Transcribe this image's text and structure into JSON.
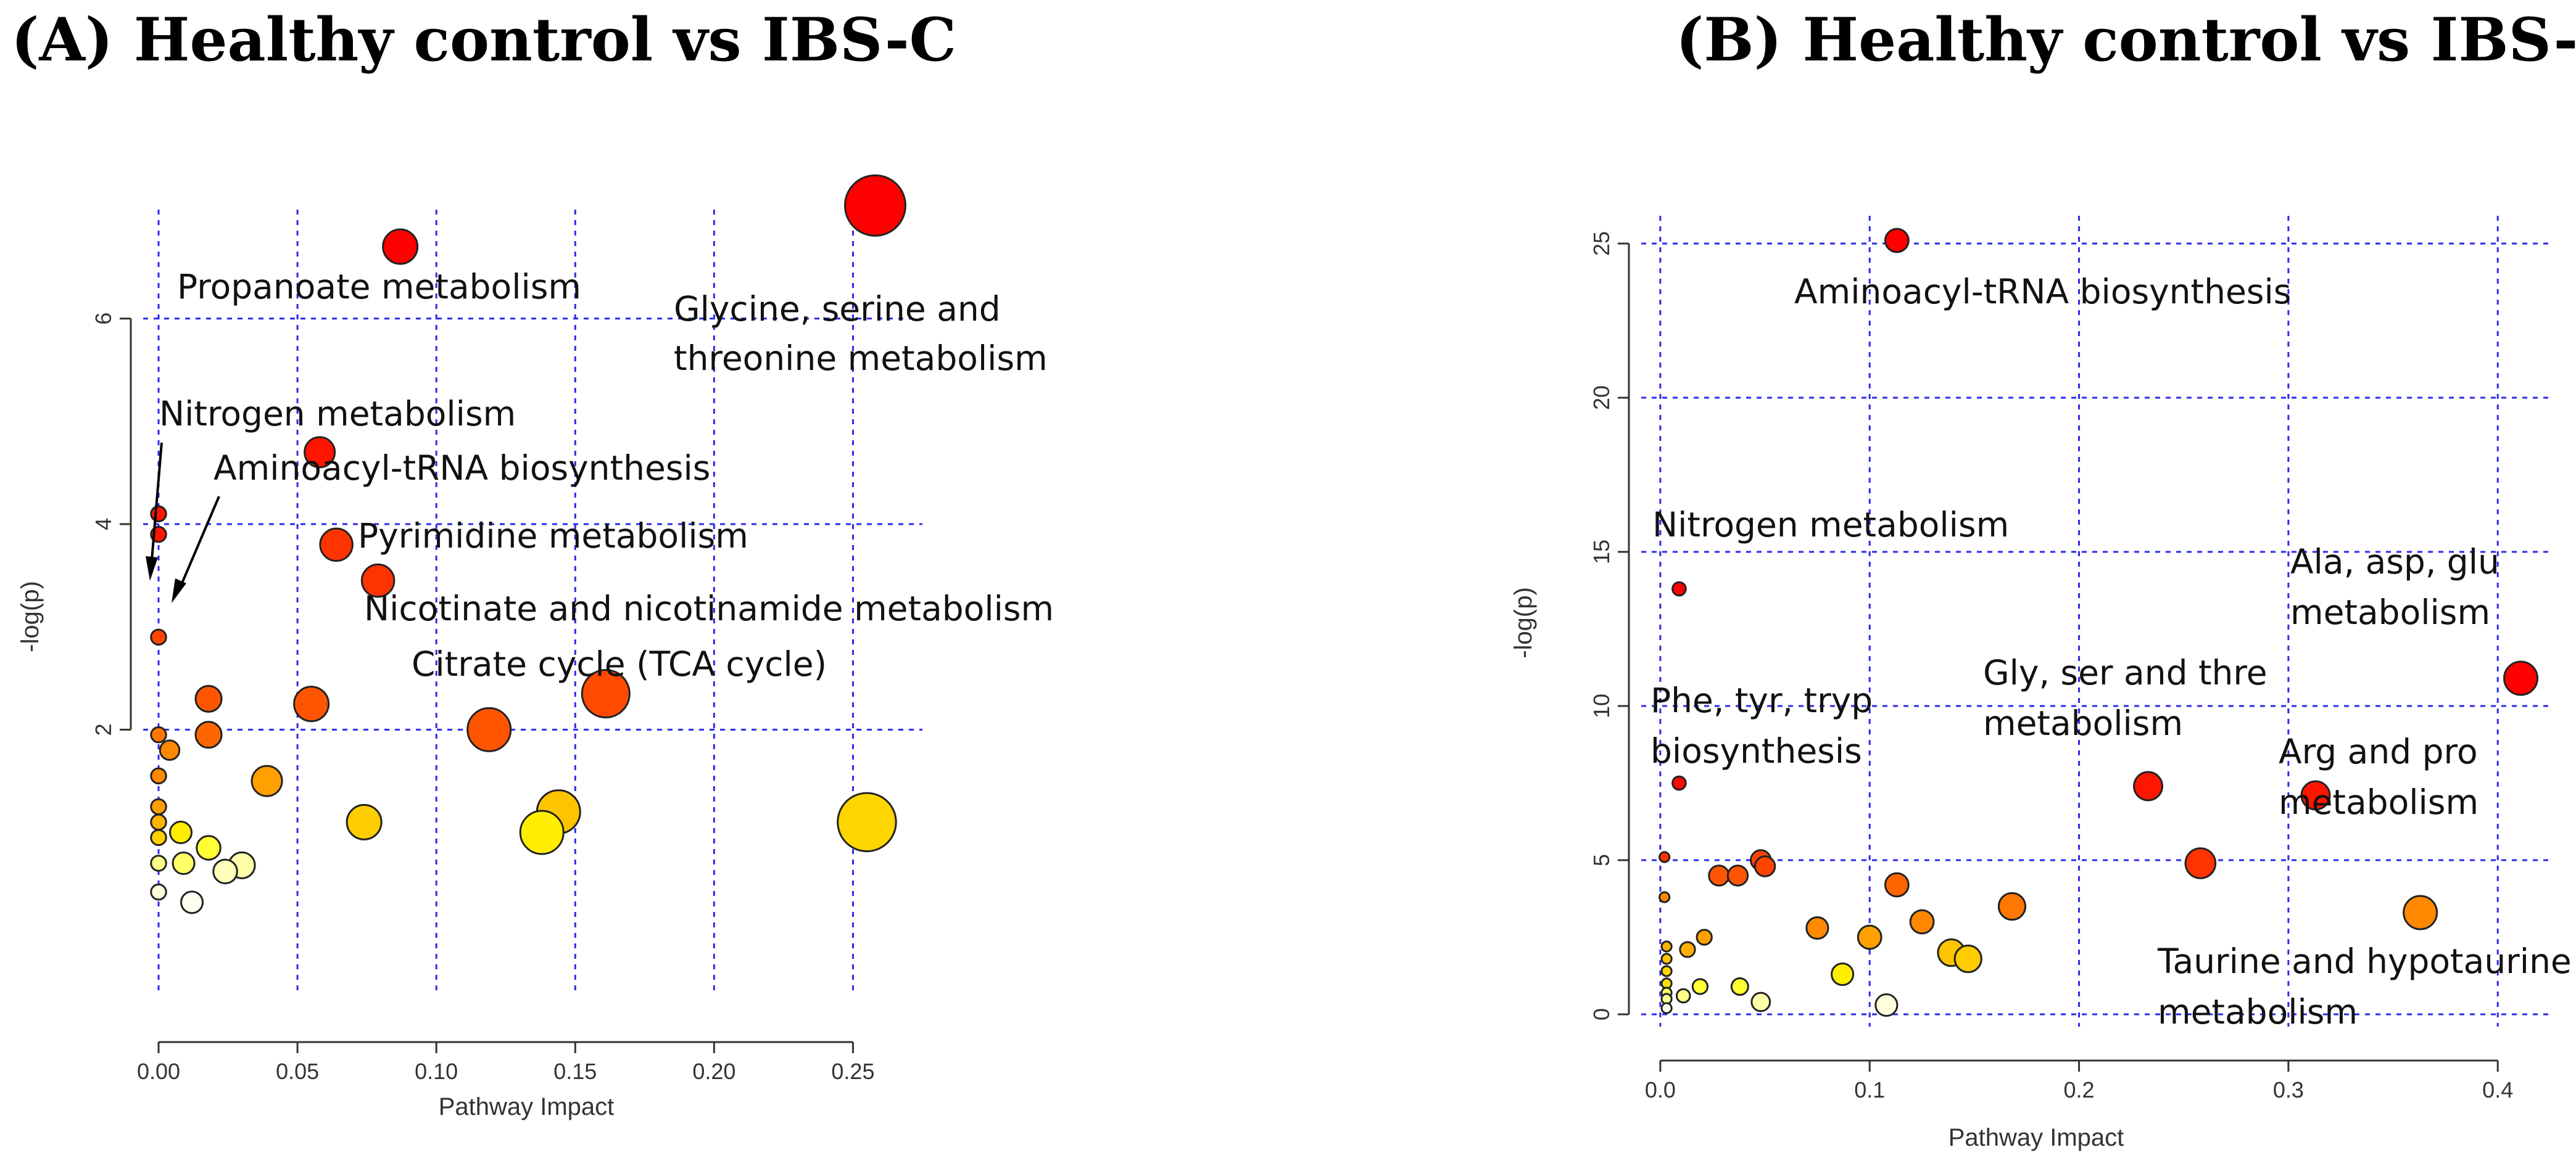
{
  "chart_data": [
    {
      "type": "scatter",
      "title": "(A) Healthy control vs IBS-C",
      "xlabel": "Pathway Impact",
      "ylabel": "-log(p)",
      "xlim": [
        -0.01,
        0.275
      ],
      "ylim": [
        -0.8,
        7.3
      ],
      "xticks": [
        0.0,
        0.05,
        0.1,
        0.15,
        0.2,
        0.25
      ],
      "xticklabels": [
        "0.00",
        "0.05",
        "0.10",
        "0.15",
        "0.20",
        "0.25"
      ],
      "yticks": [
        2,
        4,
        6
      ],
      "yticklabels": [
        "2",
        "4",
        "6"
      ],
      "ygrid": [
        2,
        4,
        6
      ],
      "yaxis_span": [
        2,
        6
      ],
      "points": [
        {
          "x": 0.258,
          "y": 7.1,
          "r": 0.14,
          "color": "#ff0000"
        },
        {
          "x": 0.087,
          "y": 6.7,
          "r": 0.08,
          "color": "#ff0000"
        },
        {
          "x": 0.058,
          "y": 4.7,
          "r": 0.07,
          "color": "#ff1500"
        },
        {
          "x": 0.064,
          "y": 3.8,
          "r": 0.075,
          "color": "#ff3300"
        },
        {
          "x": 0.079,
          "y": 3.45,
          "r": 0.075,
          "color": "#ff3300"
        },
        {
          "x": 0.0,
          "y": 4.1,
          "r": 0.035,
          "color": "#ff1500"
        },
        {
          "x": 0.0,
          "y": 3.9,
          "r": 0.035,
          "color": "#ff1500"
        },
        {
          "x": 0.0,
          "y": 2.9,
          "r": 0.035,
          "color": "#ff4500"
        },
        {
          "x": 0.161,
          "y": 2.35,
          "r": 0.11,
          "color": "#ff4a00"
        },
        {
          "x": 0.119,
          "y": 2.0,
          "r": 0.1,
          "color": "#ff5500"
        },
        {
          "x": 0.055,
          "y": 2.25,
          "r": 0.08,
          "color": "#ff5500"
        },
        {
          "x": 0.018,
          "y": 2.3,
          "r": 0.06,
          "color": "#ff5500"
        },
        {
          "x": 0.018,
          "y": 1.95,
          "r": 0.06,
          "color": "#ff6600"
        },
        {
          "x": 0.0,
          "y": 1.95,
          "r": 0.035,
          "color": "#ff7700"
        },
        {
          "x": 0.004,
          "y": 1.8,
          "r": 0.045,
          "color": "#ff8800"
        },
        {
          "x": 0.0,
          "y": 1.55,
          "r": 0.035,
          "color": "#ff8800"
        },
        {
          "x": 0.039,
          "y": 1.5,
          "r": 0.07,
          "color": "#ffa000"
        },
        {
          "x": 0.0,
          "y": 1.25,
          "r": 0.035,
          "color": "#ffa000"
        },
        {
          "x": 0.0,
          "y": 1.1,
          "r": 0.035,
          "color": "#ffb400"
        },
        {
          "x": 0.0,
          "y": 0.95,
          "r": 0.035,
          "color": "#ffd000"
        },
        {
          "x": 0.144,
          "y": 1.2,
          "r": 0.1,
          "color": "#ffc400"
        },
        {
          "x": 0.255,
          "y": 1.1,
          "r": 0.135,
          "color": "#ffd600"
        },
        {
          "x": 0.074,
          "y": 1.1,
          "r": 0.08,
          "color": "#ffcc00"
        },
        {
          "x": 0.138,
          "y": 1.0,
          "r": 0.1,
          "color": "#ffee00"
        },
        {
          "x": 0.008,
          "y": 1.0,
          "r": 0.05,
          "color": "#ffee00"
        },
        {
          "x": 0.018,
          "y": 0.85,
          "r": 0.055,
          "color": "#ffff33"
        },
        {
          "x": 0.0,
          "y": 0.7,
          "r": 0.035,
          "color": "#ffff88"
        },
        {
          "x": 0.009,
          "y": 0.7,
          "r": 0.05,
          "color": "#ffff66"
        },
        {
          "x": 0.03,
          "y": 0.68,
          "r": 0.06,
          "color": "#ffffaa"
        },
        {
          "x": 0.024,
          "y": 0.62,
          "r": 0.055,
          "color": "#ffffbb"
        },
        {
          "x": 0.0,
          "y": 0.42,
          "r": 0.035,
          "color": "#ffffdd"
        },
        {
          "x": 0.012,
          "y": 0.32,
          "r": 0.05,
          "color": "#ffffee"
        }
      ],
      "annotations": [
        "Propanoate metabolism",
        "Glycine, serine and",
        "threonine metabolism",
        "Nitrogen metabolism",
        "Aminoacyl-tRNA biosynthesis",
        "Pyrimidine metabolism",
        "Nicotinate and nicotinamide metabolism",
        "Citrate cycle (TCA cycle)"
      ]
    },
    {
      "type": "scatter",
      "title": "(B) Healthy control vs IBS-D",
      "xlabel": "Pathway Impact",
      "ylabel": "-log(p)",
      "xlim": [
        -0.015,
        0.43
      ],
      "ylim": [
        -1.0,
        26.3
      ],
      "xticks": [
        0.0,
        0.1,
        0.2,
        0.3,
        0.4
      ],
      "xticklabels": [
        "0.0",
        "0.1",
        "0.2",
        "0.3",
        "0.4"
      ],
      "yticks": [
        0,
        5,
        10,
        15,
        20,
        25
      ],
      "yticklabels": [
        "0",
        "5",
        "10",
        "15",
        "20",
        "25"
      ],
      "ygrid": [
        0,
        5,
        10,
        15,
        20,
        25
      ],
      "yaxis_span": [
        0,
        25
      ],
      "points": [
        {
          "x": 0.113,
          "y": 25.1,
          "r": 0.07,
          "color": "#ff0000"
        },
        {
          "x": 0.009,
          "y": 13.8,
          "r": 0.04,
          "color": "#ff0000"
        },
        {
          "x": 0.411,
          "y": 10.9,
          "r": 0.1,
          "color": "#ff0000"
        },
        {
          "x": 0.009,
          "y": 7.5,
          "r": 0.04,
          "color": "#ff0a00"
        },
        {
          "x": 0.233,
          "y": 7.4,
          "r": 0.085,
          "color": "#ff1500"
        },
        {
          "x": 0.313,
          "y": 7.1,
          "r": 0.085,
          "color": "#ff1500"
        },
        {
          "x": 0.258,
          "y": 4.9,
          "r": 0.09,
          "color": "#ff3300"
        },
        {
          "x": 0.002,
          "y": 5.1,
          "r": 0.03,
          "color": "#ff3300"
        },
        {
          "x": 0.048,
          "y": 5.0,
          "r": 0.06,
          "color": "#ff4400"
        },
        {
          "x": 0.05,
          "y": 4.8,
          "r": 0.06,
          "color": "#ff4400"
        },
        {
          "x": 0.028,
          "y": 4.5,
          "r": 0.06,
          "color": "#ff5500"
        },
        {
          "x": 0.037,
          "y": 4.5,
          "r": 0.06,
          "color": "#ff5500"
        },
        {
          "x": 0.113,
          "y": 4.2,
          "r": 0.07,
          "color": "#ff6600"
        },
        {
          "x": 0.002,
          "y": 3.8,
          "r": 0.03,
          "color": "#ff8800"
        },
        {
          "x": 0.168,
          "y": 3.5,
          "r": 0.08,
          "color": "#ff7700"
        },
        {
          "x": 0.363,
          "y": 3.3,
          "r": 0.1,
          "color": "#ff8800"
        },
        {
          "x": 0.125,
          "y": 3.0,
          "r": 0.07,
          "color": "#ff8800"
        },
        {
          "x": 0.075,
          "y": 2.8,
          "r": 0.065,
          "color": "#ff8800"
        },
        {
          "x": 0.1,
          "y": 2.5,
          "r": 0.07,
          "color": "#ffa000"
        },
        {
          "x": 0.021,
          "y": 2.5,
          "r": 0.045,
          "color": "#ffa000"
        },
        {
          "x": 0.003,
          "y": 2.2,
          "r": 0.03,
          "color": "#ffb000"
        },
        {
          "x": 0.013,
          "y": 2.1,
          "r": 0.045,
          "color": "#ffb000"
        },
        {
          "x": 0.139,
          "y": 2.0,
          "r": 0.08,
          "color": "#ffc400"
        },
        {
          "x": 0.147,
          "y": 1.8,
          "r": 0.08,
          "color": "#ffcc00"
        },
        {
          "x": 0.003,
          "y": 1.8,
          "r": 0.03,
          "color": "#ffc400"
        },
        {
          "x": 0.003,
          "y": 1.4,
          "r": 0.03,
          "color": "#ffd600"
        },
        {
          "x": 0.087,
          "y": 1.3,
          "r": 0.065,
          "color": "#ffee00"
        },
        {
          "x": 0.003,
          "y": 1.0,
          "r": 0.03,
          "color": "#ffe000"
        },
        {
          "x": 0.038,
          "y": 0.9,
          "r": 0.05,
          "color": "#ffff33"
        },
        {
          "x": 0.019,
          "y": 0.9,
          "r": 0.045,
          "color": "#ffff33"
        },
        {
          "x": 0.003,
          "y": 0.7,
          "r": 0.03,
          "color": "#ffff66"
        },
        {
          "x": 0.011,
          "y": 0.6,
          "r": 0.04,
          "color": "#ffff88"
        },
        {
          "x": 0.003,
          "y": 0.5,
          "r": 0.03,
          "color": "#ffff99"
        },
        {
          "x": 0.048,
          "y": 0.4,
          "r": 0.055,
          "color": "#ffffaa"
        },
        {
          "x": 0.108,
          "y": 0.3,
          "r": 0.065,
          "color": "#ffffdd"
        },
        {
          "x": 0.003,
          "y": 0.2,
          "r": 0.03,
          "color": "#ffffee"
        }
      ],
      "annotations": [
        "Aminoacyl-tRNA biosynthesis",
        "Nitrogen metabolism",
        "Ala, asp, glu",
        "metabolism",
        "Gly, ser and thre",
        "metabolism",
        "Arg and pro",
        "metabolism",
        "Phe, tyr, tryp",
        "biosynthesis",
        "Taurine and hypotaurine",
        "metabolism"
      ]
    }
  ]
}
